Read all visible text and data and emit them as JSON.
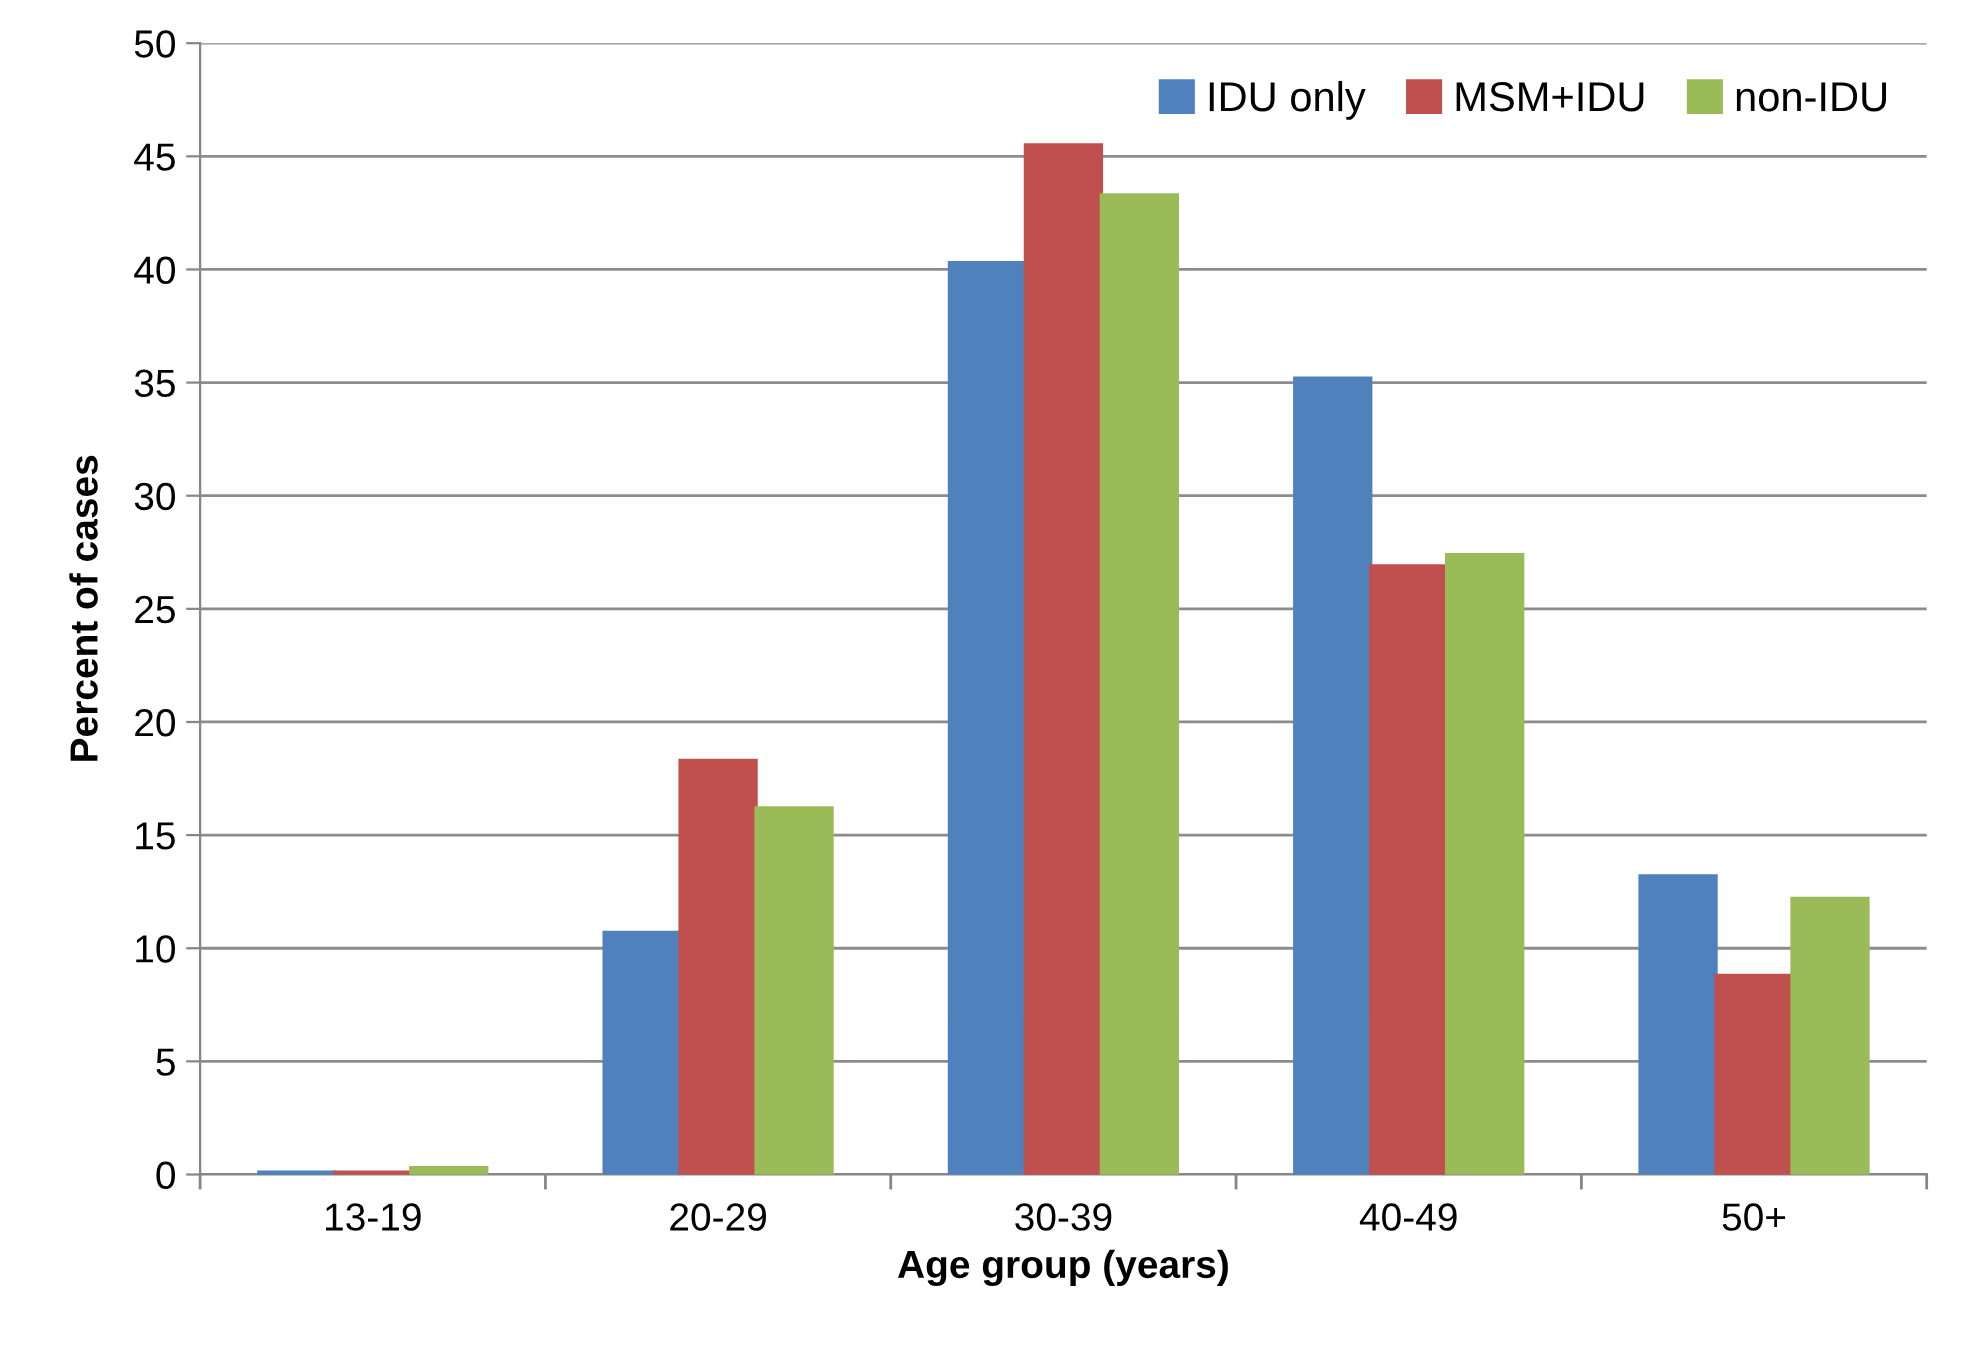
{
  "chart_data": {
    "type": "bar",
    "xlabel": "Age group (years)",
    "ylabel": "Percent of cases",
    "categories": [
      "13-19",
      "20-29",
      "30-39",
      "40-49",
      "50+"
    ],
    "series": [
      {
        "name": "IDU only",
        "color": "#4f81bd",
        "values": [
          0.1,
          10.7,
          40.3,
          35.2,
          13.2
        ]
      },
      {
        "name": "MSM+IDU",
        "color": "#c0504d",
        "values": [
          0.1,
          18.3,
          45.5,
          26.9,
          8.8
        ]
      },
      {
        "name": "non-IDU",
        "color": "#9bbb59",
        "values": [
          0.3,
          16.2,
          43.3,
          27.4,
          12.2
        ]
      }
    ],
    "ylim": [
      0,
      50
    ],
    "yticks": [
      0,
      5,
      10,
      15,
      20,
      25,
      30,
      35,
      40,
      45,
      50
    ],
    "grid": "y",
    "legend": "top right"
  }
}
